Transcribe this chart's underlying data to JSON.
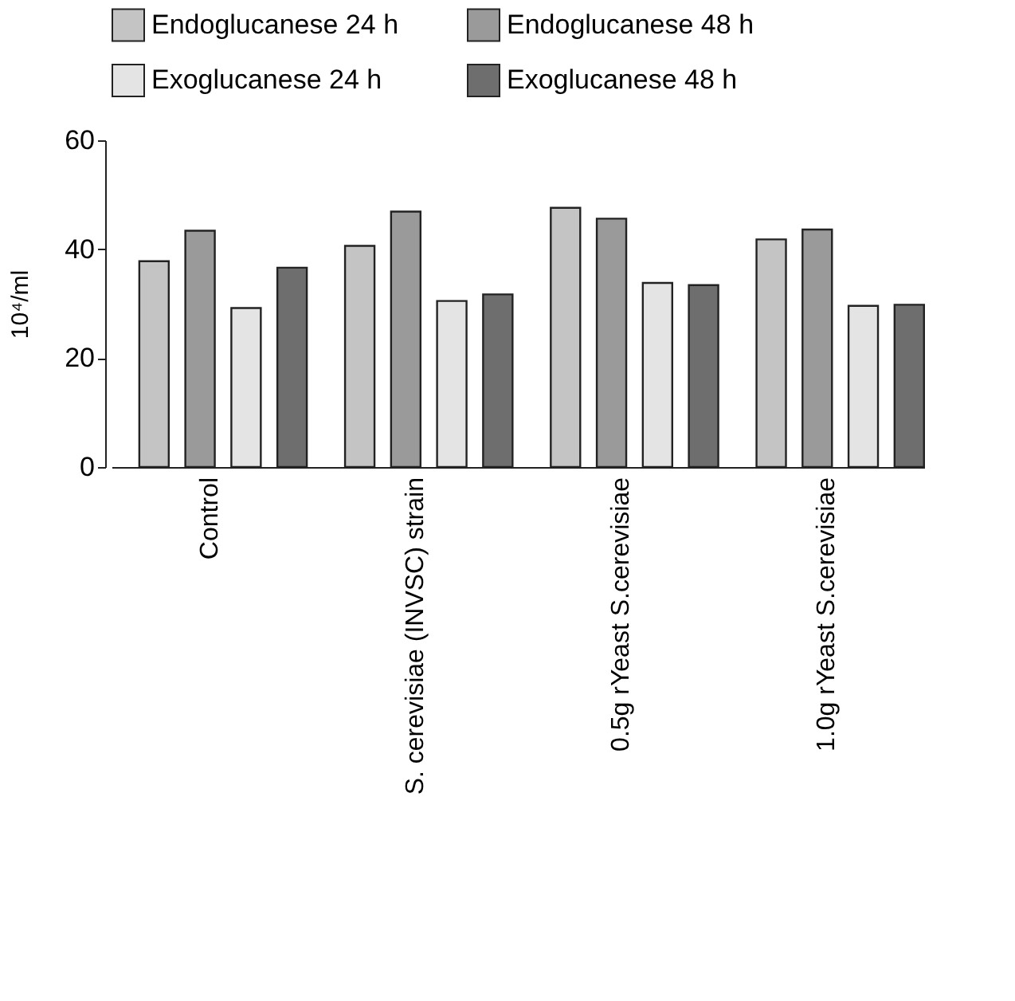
{
  "chart_data": {
    "type": "bar",
    "ylabel": "10⁴/ml",
    "categories": [
      "Control",
      "S. cerevisiae (INVSC) strain",
      "0.5g rYeast S.cerevisiae",
      "1.0g rYeast S.cerevisiae"
    ],
    "series": [
      {
        "name": "Endoglucanese 24 h",
        "color": "#c4c4c4",
        "values": [
          37.8,
          40.6,
          47.6,
          41.8
        ]
      },
      {
        "name": "Endoglucanese 48 h",
        "color": "#9a9a9a",
        "values": [
          43.4,
          46.9,
          45.6,
          43.6
        ]
      },
      {
        "name": "Exoglucanese 24 h",
        "color": "#e4e4e4",
        "values": [
          29.2,
          30.5,
          33.8,
          29.6
        ]
      },
      {
        "name": "Exoglucanese 48 h",
        "color": "#6e6e6e",
        "values": [
          36.6,
          31.7,
          33.4,
          29.8
        ]
      }
    ],
    "ylim": [
      0,
      60
    ],
    "yticks": [
      0,
      20,
      40,
      60
    ],
    "grid": false,
    "legend": "top"
  }
}
